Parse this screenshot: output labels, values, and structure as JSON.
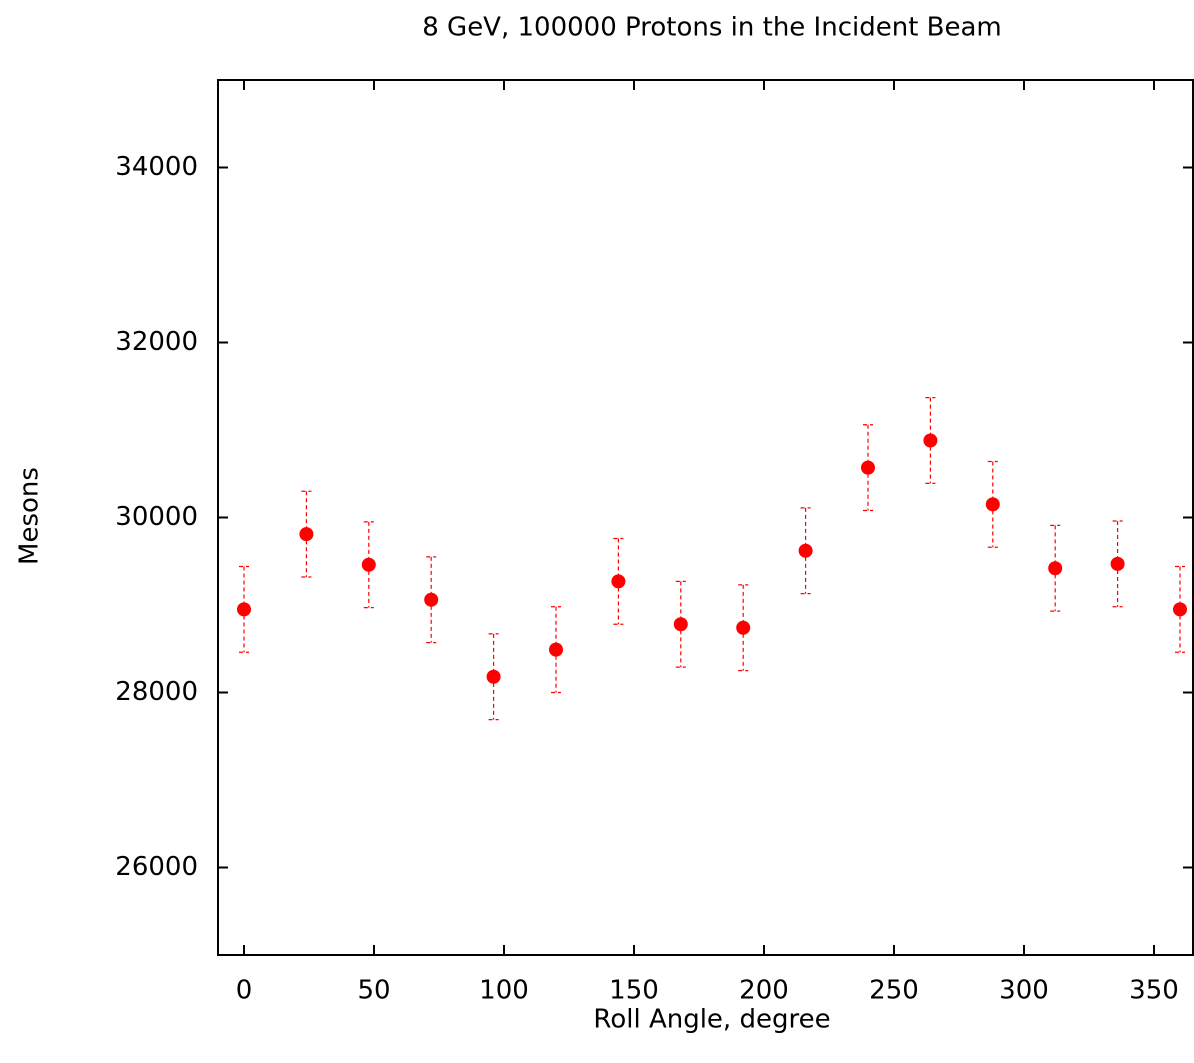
{
  "chart_data": {
    "type": "scatter",
    "title": "8 GeV, 100000 Protons in the Incident Beam",
    "xlabel": "Roll Angle, degree",
    "ylabel": "Mesons",
    "color": "#ff0000",
    "x": [
      0,
      24,
      48,
      72,
      96,
      120,
      144,
      168,
      192,
      216,
      240,
      264,
      288,
      312,
      336,
      360
    ],
    "values": [
      28950,
      29810,
      29460,
      29060,
      28180,
      28490,
      29270,
      28780,
      28740,
      29620,
      30570,
      30880,
      30150,
      29420,
      29470,
      28950
    ],
    "errors": [
      490,
      490,
      490,
      490,
      490,
      490,
      490,
      490,
      490,
      490,
      490,
      490,
      490,
      490,
      490,
      490
    ],
    "xlim": [
      -10,
      365
    ],
    "ylim": [
      25000,
      35000
    ],
    "xticks": [
      0,
      50,
      100,
      150,
      200,
      250,
      300,
      350
    ],
    "yticks": [
      26000,
      28000,
      30000,
      32000,
      34000
    ]
  }
}
